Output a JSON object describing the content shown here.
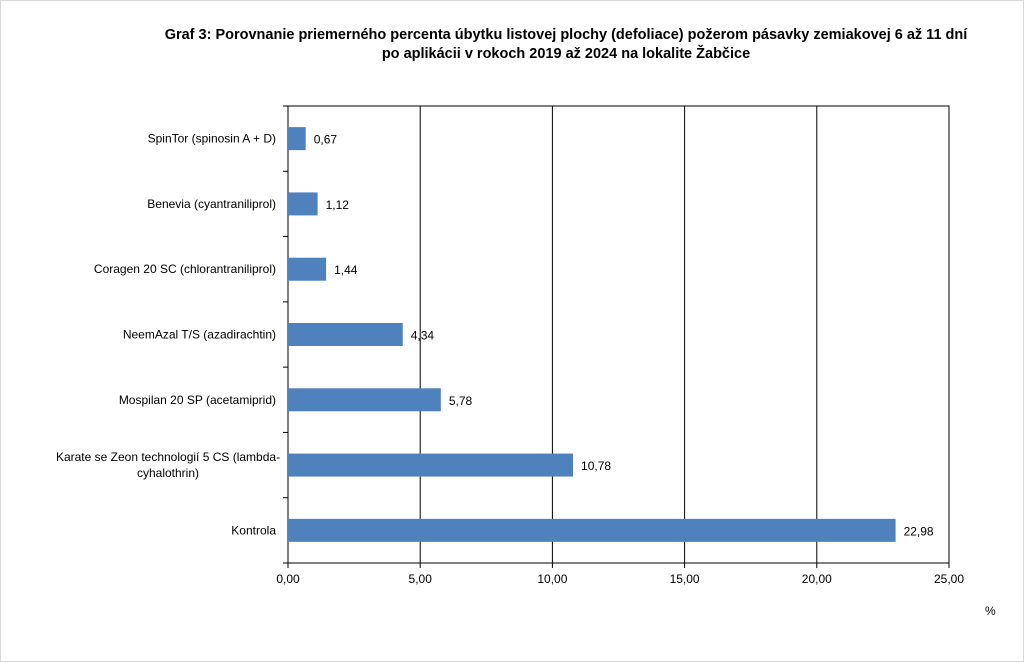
{
  "chart_data": {
    "type": "bar",
    "orientation": "horizontal",
    "title_lines": [
      "Graf 3: Porovnanie priemerného percenta úbytku listovej plochy (defoliace) požerom pásavky zemiakovej 6 až 11 dní",
      "po aplikácii v rokoch 2019 až 2024 na lokalite Žabčice"
    ],
    "categories": [
      [
        "SpinTor (spinosin A + D)"
      ],
      [
        "Benevia (cyantraniliprol)"
      ],
      [
        "Coragen 20 SC (chlorantraniliprol)"
      ],
      [
        "NeemAzal T/S (azadirachtin)"
      ],
      [
        "Mospilan 20 SP (acetamiprid)"
      ],
      [
        "Karate se Zeon technologií 5 CS (lambda-",
        "cyhalothrin)"
      ],
      [
        "Kontrola"
      ]
    ],
    "values": [
      0.67,
      1.12,
      1.44,
      4.34,
      5.78,
      10.78,
      22.98
    ],
    "value_labels": [
      "0,67",
      "1,12",
      "1,44",
      "4,34",
      "5,78",
      "10,78",
      "22,98"
    ],
    "x_ticks": [
      0,
      5,
      10,
      15,
      20,
      25
    ],
    "x_tick_labels": [
      "0,00",
      "5,00",
      "10,00",
      "15,00",
      "20,00",
      "25,00"
    ],
    "xlim": [
      0,
      25
    ],
    "xlabel": "%",
    "grid": "vertical major lines",
    "legend": "none",
    "bar_color": "#4f81bd"
  }
}
